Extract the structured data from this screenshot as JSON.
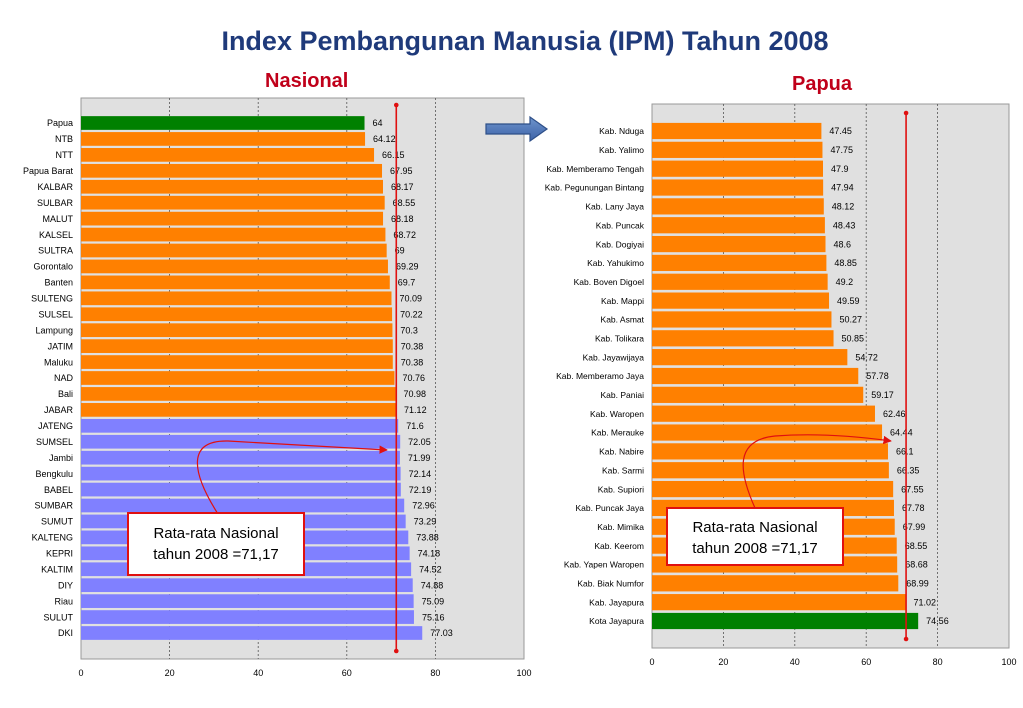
{
  "title": "Index Pembangunan Manusia (IPM) Tahun 2008",
  "colors": {
    "orange": "#ff8000",
    "blue": "#8080ff",
    "green": "#008000",
    "red": "#e01010",
    "plot_bg": "#e0e0e0",
    "title": "#1f3a7a",
    "subtitle": "#c0001a"
  },
  "chart_data": [
    {
      "type": "bar",
      "orientation": "horizontal",
      "title": "Nasional",
      "xlim": [
        0,
        100
      ],
      "xticks": [
        "0",
        "20",
        "40",
        "60",
        "80",
        "100"
      ],
      "reference_line": 71.17,
      "categories": [
        "Papua",
        "NTB",
        "NTT",
        "Papua Barat",
        "KALBAR",
        "SULBAR",
        "MALUT",
        "KALSEL",
        "SULTRA",
        "Gorontalo",
        "Banten",
        "SULTENG",
        "SULSEL",
        "Lampung",
        "JATIM",
        "Maluku",
        "NAD",
        "Bali",
        "JABAR",
        "JATENG",
        "SUMSEL",
        "Jambi",
        "Bengkulu",
        "BABEL",
        "SUMBAR",
        "SUMUT",
        "KALTENG",
        "KEPRI",
        "KALTIM",
        "DIY",
        "Riau",
        "SULUT",
        "DKI"
      ],
      "values": [
        64,
        64.12,
        66.15,
        67.95,
        68.17,
        68.55,
        68.18,
        68.72,
        69,
        69.29,
        69.7,
        70.09,
        70.22,
        70.3,
        70.38,
        70.38,
        70.76,
        70.98,
        71.12,
        71.6,
        72.05,
        71.99,
        72.14,
        72.19,
        72.96,
        73.29,
        73.88,
        74.18,
        74.52,
        74.88,
        75.09,
        75.16,
        77.03
      ],
      "labels": [
        "64",
        "64.12",
        "66.15",
        "67.95",
        "68.17",
        "68.55",
        "68.18",
        "68.72",
        "69",
        "69.29",
        "69.7",
        "70.09",
        "70.22",
        "70.3",
        "70.38",
        "70.38",
        "70.76",
        "70.98",
        "71.12",
        "71.6",
        "72.05",
        "71.99",
        "72.14",
        "72.19",
        "72.96",
        "73.29",
        "73.88",
        "74.18",
        "74.52",
        "74.88",
        "75.09",
        "75.16",
        "77.03"
      ],
      "bar_colors": [
        "green",
        "orange",
        "orange",
        "orange",
        "orange",
        "orange",
        "orange",
        "orange",
        "orange",
        "orange",
        "orange",
        "orange",
        "orange",
        "orange",
        "orange",
        "orange",
        "orange",
        "orange",
        "orange",
        "blue",
        "blue",
        "blue",
        "blue",
        "blue",
        "blue",
        "blue",
        "blue",
        "blue",
        "blue",
        "blue",
        "blue",
        "blue",
        "blue"
      ],
      "annotation": {
        "line1": "Rata-rata  Nasional",
        "line2": "tahun 2008 =71,17"
      }
    },
    {
      "type": "bar",
      "orientation": "horizontal",
      "title": "Papua",
      "xlim": [
        0,
        100
      ],
      "xticks": [
        "0",
        "20",
        "40",
        "60",
        "80",
        "100"
      ],
      "reference_line": 71.17,
      "categories": [
        "Kab. Nduga",
        "Kab. Yalimo",
        "Kab. Memberamo Tengah",
        "Kab. Pegunungan Bintang",
        "Kab. Lany Jaya",
        "Kab. Puncak",
        "Kab. Dogiyai",
        "Kab. Yahukimo",
        "Kab. Boven Digoel",
        "Kab. Mappi",
        "Kab. Asmat",
        "Kab. Tolikara",
        "Kab. Jayawijaya",
        "Kab. Memberamo Jaya",
        "Kab. Paniai",
        "Kab. Waropen",
        "Kab. Merauke",
        "Kab. Nabire",
        "Kab. Sarmi",
        "Kab. Supiori",
        "Kab. Puncak Jaya",
        "Kab. Mimika",
        "Kab. Keerom",
        "Kab. Yapen Waropen",
        "Kab. Biak Numfor",
        "Kab. Jayapura",
        "Kota Jayapura"
      ],
      "values": [
        47.45,
        47.75,
        47.9,
        47.94,
        48.12,
        48.43,
        48.6,
        48.85,
        49.2,
        49.59,
        50.27,
        50.85,
        54.72,
        57.78,
        59.17,
        62.46,
        64.44,
        66.1,
        66.35,
        67.55,
        67.78,
        67.99,
        68.55,
        68.68,
        68.99,
        71.02,
        74.56
      ],
      "labels": [
        "47.45",
        "47.75",
        "47.9",
        "47.94",
        "48.12",
        "48.43",
        "48.6",
        "48.85",
        "49.2",
        "49.59",
        "50.27",
        "50.85",
        "54.72",
        "57.78",
        "59.17",
        "62.46",
        "64.44",
        "66.1",
        "66.35",
        "67.55",
        "67.78",
        "67.99",
        "68.55",
        "68.68",
        "68.99",
        "71.02",
        "74.56"
      ],
      "bar_colors": [
        "orange",
        "orange",
        "orange",
        "orange",
        "orange",
        "orange",
        "orange",
        "orange",
        "orange",
        "orange",
        "orange",
        "orange",
        "orange",
        "orange",
        "orange",
        "orange",
        "orange",
        "orange",
        "orange",
        "orange",
        "orange",
        "orange",
        "orange",
        "orange",
        "orange",
        "orange",
        "green"
      ],
      "annotation": {
        "line1": "Rata-rata  Nasional",
        "line2": "tahun 2008 =71,17"
      }
    }
  ]
}
